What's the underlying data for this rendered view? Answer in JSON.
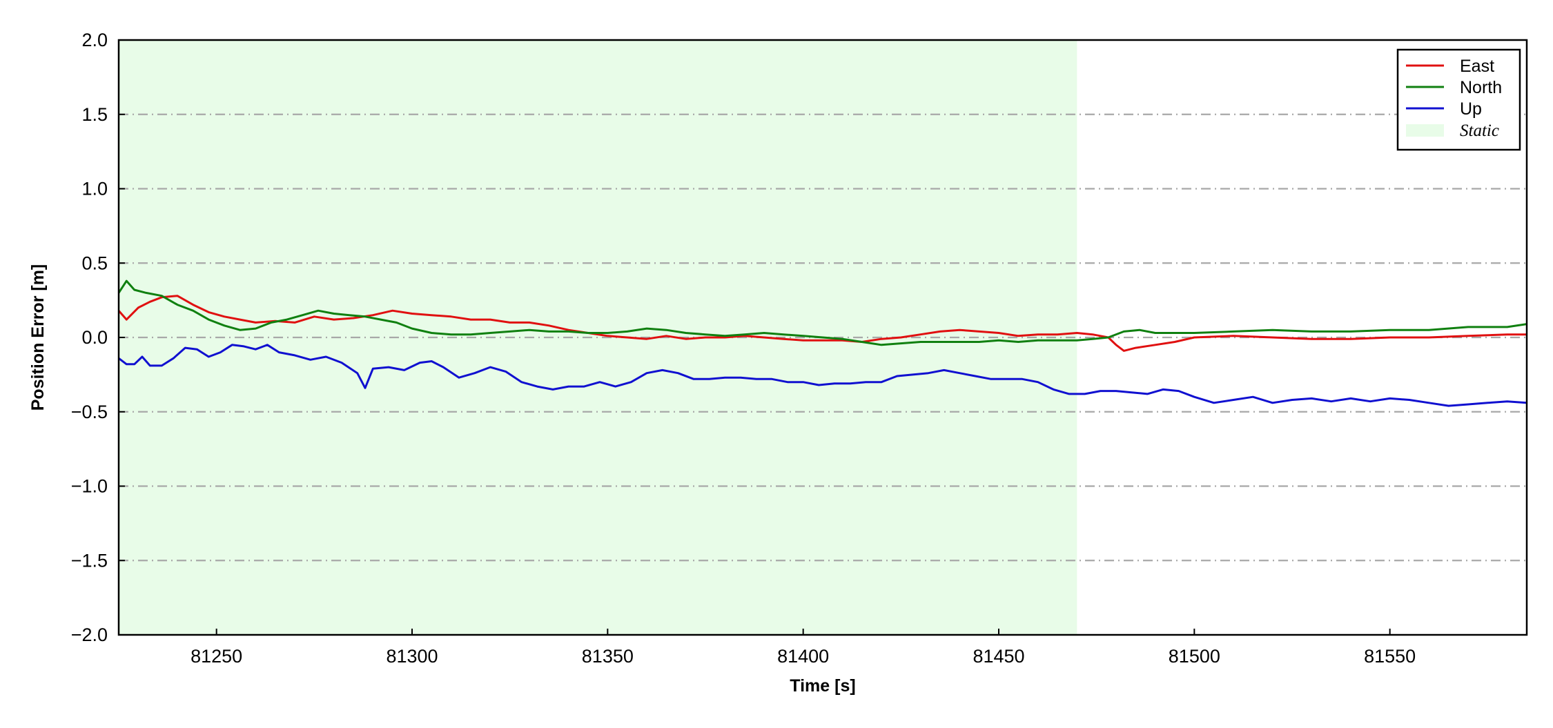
{
  "chart_data": {
    "type": "line",
    "xlabel": "Time [s]",
    "ylabel": "Position Error [m]",
    "xlim": [
      81225,
      81585
    ],
    "ylim": [
      -2.0,
      2.0
    ],
    "xticks": [
      81250,
      81300,
      81350,
      81400,
      81450,
      81500,
      81550
    ],
    "xtick_labels": [
      "81250",
      "81300",
      "81350",
      "81400",
      "81450",
      "81500",
      "81550"
    ],
    "yticks": [
      -2.0,
      -1.5,
      -1.0,
      -0.5,
      0.0,
      0.5,
      1.0,
      1.5,
      2.0
    ],
    "ytick_labels": [
      "−2.0",
      "−1.5",
      "−1.0",
      "−0.5",
      "0.0",
      "0.5",
      "1.0",
      "1.5",
      "2.0"
    ],
    "grid": "horizontal dash-dot",
    "legend_position": "top-right",
    "shaded_region": {
      "label": "Static",
      "x_start": 81225,
      "x_end": 81470,
      "color": "#e8fce8"
    },
    "series": [
      {
        "name": "East",
        "color": "#e01010",
        "x": [
          81225,
          81227,
          81230,
          81233,
          81236,
          81240,
          81244,
          81248,
          81252,
          81256,
          81260,
          81265,
          81270,
          81275,
          81280,
          81285,
          81290,
          81295,
          81300,
          81305,
          81310,
          81315,
          81320,
          81325,
          81330,
          81335,
          81340,
          81345,
          81350,
          81355,
          81360,
          81365,
          81370,
          81375,
          81380,
          81385,
          81390,
          81395,
          81400,
          81405,
          81410,
          81415,
          81420,
          81425,
          81430,
          81435,
          81440,
          81445,
          81450,
          81455,
          81460,
          81465,
          81470,
          81474,
          81478,
          81480,
          81482,
          81485,
          81490,
          81495,
          81500,
          81510,
          81520,
          81530,
          81540,
          81550,
          81560,
          81570,
          81580,
          81585
        ],
        "y": [
          0.18,
          0.12,
          0.2,
          0.24,
          0.27,
          0.28,
          0.22,
          0.17,
          0.14,
          0.12,
          0.1,
          0.11,
          0.1,
          0.14,
          0.12,
          0.13,
          0.15,
          0.18,
          0.16,
          0.15,
          0.14,
          0.12,
          0.12,
          0.1,
          0.1,
          0.08,
          0.05,
          0.03,
          0.01,
          0.0,
          -0.01,
          0.01,
          -0.01,
          0.0,
          0.0,
          0.01,
          0.0,
          -0.01,
          -0.02,
          -0.02,
          -0.02,
          -0.03,
          -0.01,
          0.0,
          0.02,
          0.04,
          0.05,
          0.04,
          0.03,
          0.01,
          0.02,
          0.02,
          0.03,
          0.02,
          0.0,
          -0.05,
          -0.09,
          -0.07,
          -0.05,
          -0.03,
          0.0,
          0.01,
          0.0,
          -0.01,
          -0.01,
          0.0,
          0.0,
          0.01,
          0.02,
          0.02
        ]
      },
      {
        "name": "North",
        "color": "#108010",
        "x": [
          81225,
          81227,
          81229,
          81232,
          81236,
          81240,
          81244,
          81248,
          81252,
          81256,
          81260,
          81264,
          81268,
          81272,
          81276,
          81280,
          81284,
          81288,
          81292,
          81296,
          81300,
          81305,
          81310,
          81315,
          81320,
          81325,
          81330,
          81335,
          81340,
          81345,
          81350,
          81355,
          81360,
          81365,
          81370,
          81375,
          81380,
          81385,
          81390,
          81395,
          81400,
          81405,
          81410,
          81415,
          81420,
          81425,
          81430,
          81435,
          81440,
          81445,
          81450,
          81455,
          81460,
          81465,
          81470,
          81474,
          81478,
          81482,
          81486,
          81490,
          81500,
          81510,
          81520,
          81530,
          81540,
          81550,
          81560,
          81570,
          81580,
          81585
        ],
        "y": [
          0.3,
          0.38,
          0.32,
          0.3,
          0.28,
          0.22,
          0.18,
          0.12,
          0.08,
          0.05,
          0.06,
          0.1,
          0.12,
          0.15,
          0.18,
          0.16,
          0.15,
          0.14,
          0.12,
          0.1,
          0.06,
          0.03,
          0.02,
          0.02,
          0.03,
          0.04,
          0.05,
          0.04,
          0.04,
          0.03,
          0.03,
          0.04,
          0.06,
          0.05,
          0.03,
          0.02,
          0.01,
          0.02,
          0.03,
          0.02,
          0.01,
          0.0,
          -0.01,
          -0.03,
          -0.05,
          -0.04,
          -0.03,
          -0.03,
          -0.03,
          -0.03,
          -0.02,
          -0.03,
          -0.02,
          -0.02,
          -0.02,
          -0.01,
          0.0,
          0.04,
          0.05,
          0.03,
          0.03,
          0.04,
          0.05,
          0.04,
          0.04,
          0.05,
          0.05,
          0.07,
          0.07,
          0.09
        ]
      },
      {
        "name": "Up",
        "color": "#1010d0",
        "x": [
          81225,
          81227,
          81229,
          81231,
          81233,
          81236,
          81239,
          81242,
          81245,
          81248,
          81251,
          81254,
          81257,
          81260,
          81263,
          81266,
          81270,
          81274,
          81278,
          81282,
          81286,
          81288,
          81290,
          81294,
          81298,
          81302,
          81305,
          81308,
          81312,
          81316,
          81320,
          81324,
          81328,
          81332,
          81336,
          81340,
          81344,
          81348,
          81352,
          81356,
          81360,
          81364,
          81368,
          81372,
          81376,
          81380,
          81384,
          81388,
          81392,
          81396,
          81400,
          81404,
          81408,
          81412,
          81416,
          81420,
          81424,
          81428,
          81432,
          81436,
          81440,
          81444,
          81448,
          81452,
          81456,
          81460,
          81464,
          81468,
          81472,
          81476,
          81480,
          81484,
          81488,
          81492,
          81496,
          81500,
          81505,
          81510,
          81515,
          81520,
          81525,
          81530,
          81535,
          81540,
          81545,
          81550,
          81555,
          81560,
          81565,
          81570,
          81575,
          81580,
          81585
        ],
        "y": [
          -0.14,
          -0.18,
          -0.18,
          -0.13,
          -0.19,
          -0.19,
          -0.14,
          -0.07,
          -0.08,
          -0.13,
          -0.1,
          -0.05,
          -0.06,
          -0.08,
          -0.05,
          -0.1,
          -0.12,
          -0.15,
          -0.13,
          -0.17,
          -0.24,
          -0.34,
          -0.21,
          -0.2,
          -0.22,
          -0.17,
          -0.16,
          -0.2,
          -0.27,
          -0.24,
          -0.2,
          -0.23,
          -0.3,
          -0.33,
          -0.35,
          -0.33,
          -0.33,
          -0.3,
          -0.33,
          -0.3,
          -0.24,
          -0.22,
          -0.24,
          -0.28,
          -0.28,
          -0.27,
          -0.27,
          -0.28,
          -0.28,
          -0.3,
          -0.3,
          -0.32,
          -0.31,
          -0.31,
          -0.3,
          -0.3,
          -0.26,
          -0.25,
          -0.24,
          -0.22,
          -0.24,
          -0.26,
          -0.28,
          -0.28,
          -0.28,
          -0.3,
          -0.35,
          -0.38,
          -0.38,
          -0.36,
          -0.36,
          -0.37,
          -0.38,
          -0.35,
          -0.36,
          -0.4,
          -0.44,
          -0.42,
          -0.4,
          -0.44,
          -0.42,
          -0.41,
          -0.43,
          -0.41,
          -0.43,
          -0.41,
          -0.42,
          -0.44,
          -0.46,
          -0.45,
          -0.44,
          -0.43,
          -0.44
        ]
      }
    ]
  }
}
